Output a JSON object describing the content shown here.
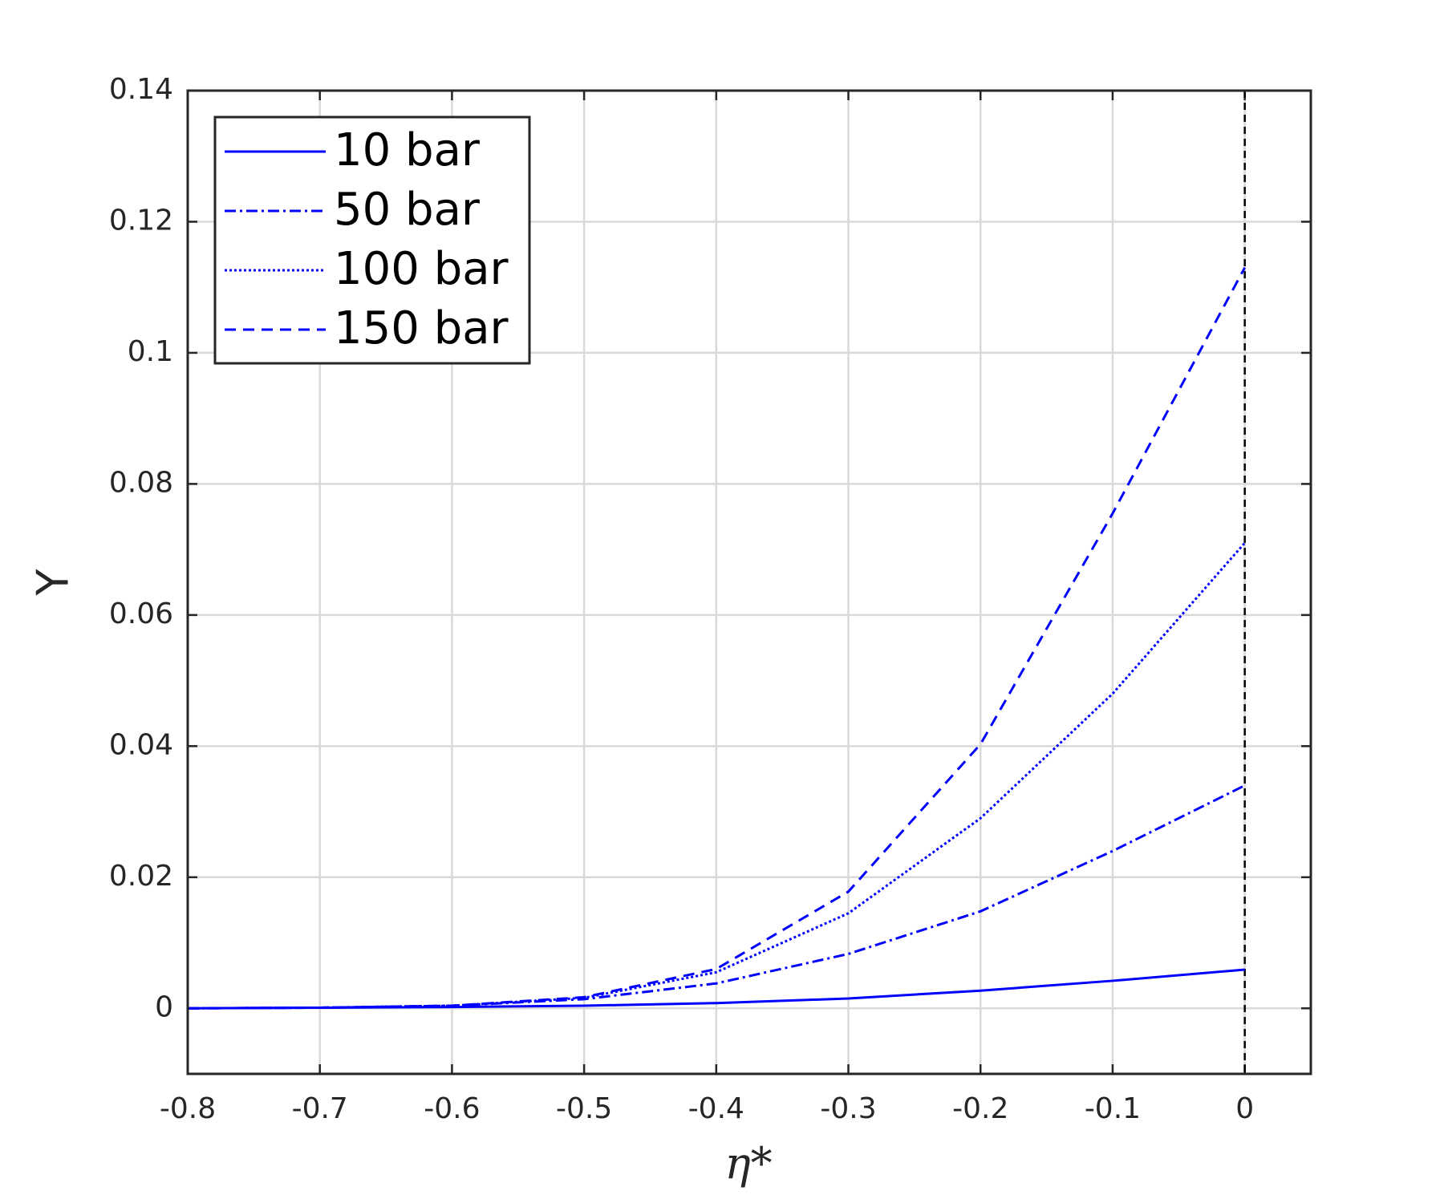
{
  "chart_data": {
    "type": "line",
    "x_label": "η*",
    "y_label": "Y",
    "x": [
      -0.8,
      -0.7,
      -0.6,
      -0.5,
      -0.4,
      -0.3,
      -0.2,
      -0.1,
      0
    ],
    "series": [
      {
        "name": "10 bar",
        "color": "#0000ff",
        "style": "solid",
        "values": [
          0,
          0.0001,
          0.0002,
          0.0004,
          0.0008,
          0.0015,
          0.0027,
          0.0042,
          0.0059
        ]
      },
      {
        "name": "50 bar",
        "color": "#0000ff",
        "style": "dashdot",
        "values": [
          0,
          0.0001,
          0.0004,
          0.0014,
          0.0038,
          0.0083,
          0.0148,
          0.024,
          0.034
        ]
      },
      {
        "name": "100 bar",
        "color": "#0000ff",
        "style": "dotted",
        "values": [
          0,
          0.0001,
          0.0004,
          0.0016,
          0.0055,
          0.0145,
          0.029,
          0.048,
          0.071
        ]
      },
      {
        "name": "150 bar",
        "color": "#0000ff",
        "style": "dashed",
        "values": [
          0,
          0.0001,
          0.0004,
          0.0017,
          0.006,
          0.0178,
          0.0403,
          0.0755,
          0.113
        ]
      }
    ],
    "xlim": [
      -0.8,
      0.05
    ],
    "ylim": [
      -0.01,
      0.14
    ],
    "xticks": [
      -0.8,
      -0.7,
      -0.6,
      -0.5,
      -0.4,
      -0.3,
      -0.2,
      -0.1,
      0
    ],
    "yticks": [
      0,
      0.02,
      0.04,
      0.06,
      0.08,
      0.1,
      0.12,
      0.14
    ],
    "vline": 0,
    "grid": true,
    "legend": "upper-left"
  }
}
